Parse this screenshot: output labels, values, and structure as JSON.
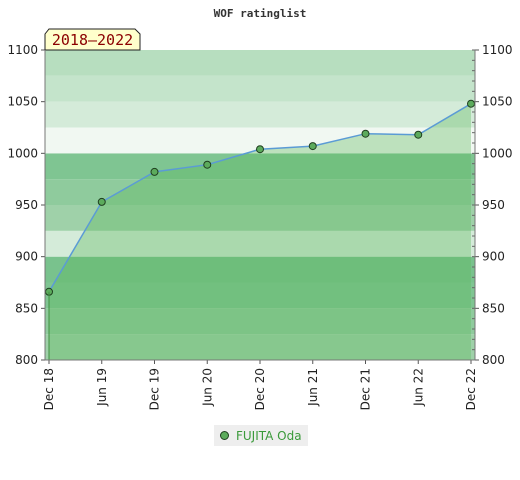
{
  "chart_data": {
    "type": "area",
    "title": "WOF ratinglist",
    "period_label": "2018–2022",
    "xlabel": "",
    "ylabel": "",
    "ylim": [
      800,
      1100
    ],
    "yticks": [
      800,
      850,
      900,
      950,
      1000,
      1050,
      1100
    ],
    "categories": [
      "Dec 18",
      "Jun 19",
      "Dec 19",
      "Jun 20",
      "Dec 20",
      "Jun 21",
      "Dec 21",
      "Jun 22",
      "Dec 22"
    ],
    "series": [
      {
        "name": "FUJITA Oda",
        "values": [
          866,
          953,
          982,
          989,
          1004,
          1007,
          1019,
          1018,
          1048
        ]
      }
    ],
    "colors": {
      "line": "#5b9bd5",
      "area": "#5cb85c",
      "marker": "#5cab5c",
      "marker_stroke": "#1f3f1f",
      "period_bg": "#ffffcc"
    },
    "grid": true,
    "legend_position": "bottom-center"
  }
}
